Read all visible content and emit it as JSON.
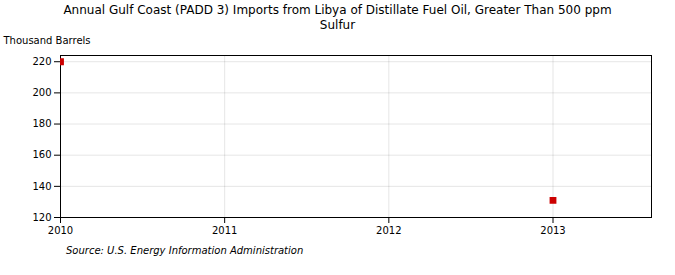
{
  "chart_data": {
    "type": "scatter",
    "title": "Annual Gulf Coast (PADD 3) Imports from Libya of Distillate Fuel Oil, Greater Than 500 ppm\nSulfur",
    "ylabel": "Thousand Barrels",
    "source": "Source: U.S. Energy Information Administration",
    "x": [
      2010,
      2013
    ],
    "values": [
      220,
      131
    ],
    "color": "#cc0000",
    "marker": "square",
    "xlim": [
      2010,
      2013.6
    ],
    "ylim": [
      120,
      224
    ],
    "xticks": [
      2010,
      2011,
      2012,
      2013
    ],
    "yticks": [
      120,
      140,
      160,
      180,
      200,
      220
    ],
    "grid": true
  }
}
